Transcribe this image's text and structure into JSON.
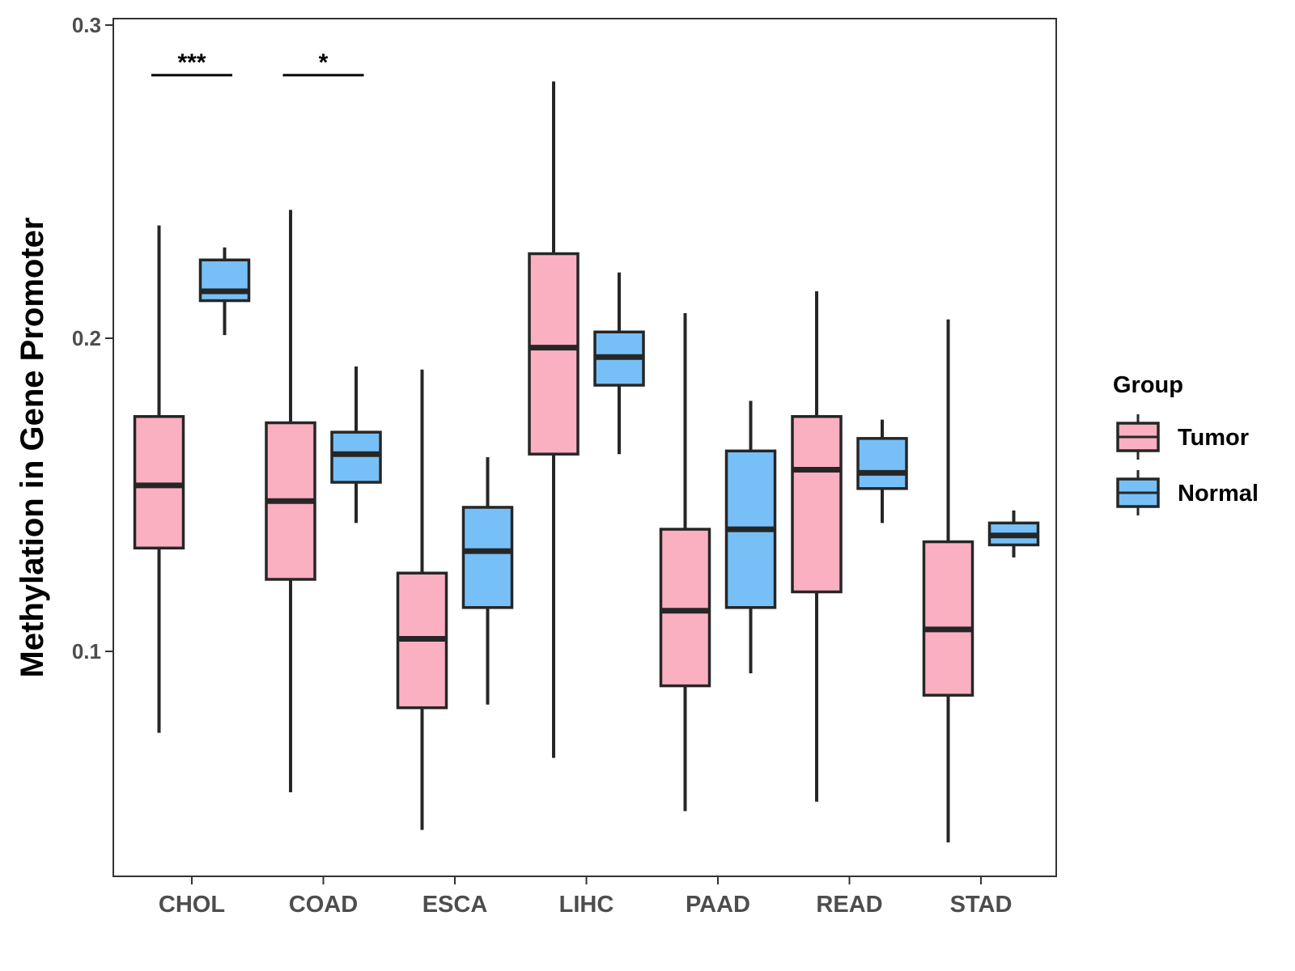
{
  "chart_data": {
    "type": "boxplot",
    "title": "",
    "xlabel": "",
    "ylabel": "Methylation in Gene Promoter",
    "ylim": [
      0.028,
      0.302
    ],
    "yticks": [
      "0.1",
      "0.2",
      "0.3"
    ],
    "ytick_values": [
      0.1,
      0.2,
      0.3
    ],
    "categories": [
      "CHOL",
      "COAD",
      "ESCA",
      "LIHC",
      "PAAD",
      "READ",
      "STAD"
    ],
    "legend": {
      "title": "Group",
      "position": "right",
      "entries": [
        "Tumor",
        "Normal"
      ]
    },
    "colors": {
      "Tumor": "#fbb0c1",
      "Normal": "#77c0f7",
      "outline": "#262626"
    },
    "series": [
      {
        "name": "Tumor",
        "boxes": [
          {
            "category": "CHOL",
            "min": 0.074,
            "q1": 0.133,
            "median": 0.153,
            "q3": 0.175,
            "max": 0.236
          },
          {
            "category": "COAD",
            "min": 0.055,
            "q1": 0.123,
            "median": 0.148,
            "q3": 0.173,
            "max": 0.241
          },
          {
            "category": "ESCA",
            "min": 0.043,
            "q1": 0.082,
            "median": 0.104,
            "q3": 0.125,
            "max": 0.19
          },
          {
            "category": "LIHC",
            "min": 0.066,
            "q1": 0.163,
            "median": 0.197,
            "q3": 0.227,
            "max": 0.282
          },
          {
            "category": "PAAD",
            "min": 0.049,
            "q1": 0.089,
            "median": 0.113,
            "q3": 0.139,
            "max": 0.208
          },
          {
            "category": "READ",
            "min": 0.052,
            "q1": 0.119,
            "median": 0.158,
            "q3": 0.175,
            "max": 0.215
          },
          {
            "category": "STAD",
            "min": 0.039,
            "q1": 0.086,
            "median": 0.107,
            "q3": 0.135,
            "max": 0.206
          }
        ]
      },
      {
        "name": "Normal",
        "boxes": [
          {
            "category": "CHOL",
            "min": 0.201,
            "q1": 0.212,
            "median": 0.215,
            "q3": 0.225,
            "max": 0.229
          },
          {
            "category": "COAD",
            "min": 0.141,
            "q1": 0.154,
            "median": 0.163,
            "q3": 0.17,
            "max": 0.191
          },
          {
            "category": "ESCA",
            "min": 0.083,
            "q1": 0.114,
            "median": 0.132,
            "q3": 0.146,
            "max": 0.162
          },
          {
            "category": "LIHC",
            "min": 0.163,
            "q1": 0.185,
            "median": 0.194,
            "q3": 0.202,
            "max": 0.221
          },
          {
            "category": "PAAD",
            "min": 0.093,
            "q1": 0.114,
            "median": 0.139,
            "q3": 0.164,
            "max": 0.18
          },
          {
            "category": "READ",
            "min": 0.141,
            "q1": 0.152,
            "median": 0.157,
            "q3": 0.168,
            "max": 0.174
          },
          {
            "category": "STAD",
            "min": 0.13,
            "q1": 0.134,
            "median": 0.137,
            "q3": 0.141,
            "max": 0.145
          }
        ]
      }
    ],
    "annotations": [
      {
        "category": "CHOL",
        "label": "***",
        "y": 0.284
      },
      {
        "category": "COAD",
        "label": "*",
        "y": 0.284
      }
    ]
  }
}
